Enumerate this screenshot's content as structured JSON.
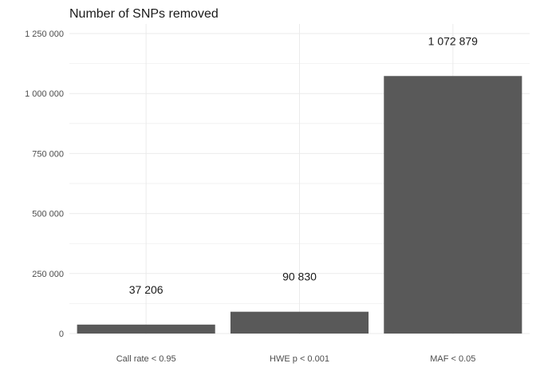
{
  "chart_data": {
    "type": "bar",
    "title": "Number of SNPs removed",
    "xlabel": "",
    "ylabel": "",
    "categories": [
      "Call rate < 0.95",
      "HWE p < 0.001",
      "MAF < 0.05"
    ],
    "values": [
      37206,
      90830,
      1072879
    ],
    "data_labels": [
      "37 206",
      "90 830",
      "1 072 879"
    ],
    "ylim": [
      0,
      1250000
    ],
    "y_ticks": [
      {
        "value": 0,
        "label": "0"
      },
      {
        "value": 250000,
        "label": "250 000"
      },
      {
        "value": 500000,
        "label": "500 000"
      },
      {
        "value": 750000,
        "label": "750 000"
      },
      {
        "value": 1000000,
        "label": "1 000 000"
      },
      {
        "value": 1250000,
        "label": "1 250 000"
      }
    ],
    "grid": true,
    "legend": "none",
    "bar_color": "#595959"
  }
}
